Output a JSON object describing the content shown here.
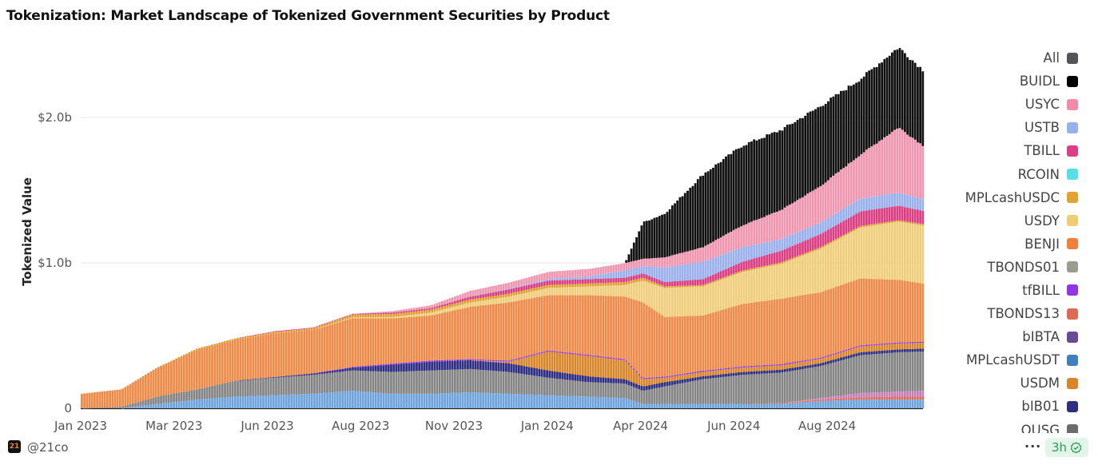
{
  "chart_data": {
    "type": "bar",
    "stacked": true,
    "title": "Tokenization: Market Landscape of Tokenized Government Securities by Product",
    "xlabel": "",
    "ylabel": "Tokenized Value",
    "ylim": [
      0,
      2.45
    ],
    "y_unit": "billion USD",
    "yticks": [
      {
        "value": 0,
        "label": "0"
      },
      {
        "value": 1.0,
        "label": "$1.0b"
      },
      {
        "value": 2.0,
        "label": "$2.0b"
      }
    ],
    "xlim": [
      "2023-01-01",
      "2024-10-21"
    ],
    "xticks": [
      {
        "date": "2023-01-01",
        "label": "Jan 2023"
      },
      {
        "date": "2023-03-15",
        "label": "Mar 2023"
      },
      {
        "date": "2023-05-27",
        "label": "Jun 2023"
      },
      {
        "date": "2023-08-08",
        "label": "Aug 2023"
      },
      {
        "date": "2023-10-20",
        "label": "Nov 2023"
      },
      {
        "date": "2024-01-01",
        "label": "Jan 2024"
      },
      {
        "date": "2024-03-14",
        "label": "Apr 2024"
      },
      {
        "date": "2024-05-26",
        "label": "Jun 2024"
      },
      {
        "date": "2024-08-07",
        "label": "Aug 2024"
      }
    ],
    "grid": "horizontal",
    "legend_position": "right",
    "x": [
      "2023-01-01",
      "2023-02-01",
      "2023-03-01",
      "2023-04-01",
      "2023-05-01",
      "2023-06-01",
      "2023-07-01",
      "2023-08-01",
      "2023-09-01",
      "2023-10-01",
      "2023-11-01",
      "2023-12-01",
      "2024-01-01",
      "2024-02-01",
      "2024-03-01",
      "2024-03-15",
      "2024-04-01",
      "2024-05-01",
      "2024-06-01",
      "2024-07-01",
      "2024-08-01",
      "2024-09-01",
      "2024-10-01",
      "2024-10-20"
    ],
    "series": [
      {
        "color": "#6fa3dc",
        "values": [
          0,
          0,
          0.03,
          0.06,
          0.08,
          0.09,
          0.1,
          0.12,
          0.1,
          0.1,
          0.11,
          0.1,
          0.09,
          0.08,
          0.07,
          0.03,
          0.03,
          0.03,
          0.03,
          0.03,
          0.05,
          0.06,
          0.06,
          0.06
        ]
      },
      {
        "name": "TBONDS13",
        "color": "#dc6a55",
        "values": [
          0,
          0,
          0,
          0,
          0,
          0,
          0,
          0,
          0,
          0,
          0,
          0,
          0,
          0,
          0,
          0,
          0,
          0,
          0,
          0.005,
          0.01,
          0.015,
          0.02,
          0.02
        ]
      },
      {
        "name": "bIBTA",
        "color": "#c77fb8",
        "values": [
          0,
          0,
          0,
          0,
          0,
          0,
          0,
          0,
          0,
          0,
          0,
          0,
          0,
          0,
          0,
          0,
          0,
          0,
          0,
          0,
          0.01,
          0.03,
          0.035,
          0.04
        ]
      },
      {
        "name": "OUSG",
        "color": "#858585",
        "values": [
          0,
          0.01,
          0.05,
          0.07,
          0.11,
          0.12,
          0.13,
          0.14,
          0.15,
          0.16,
          0.16,
          0.15,
          0.12,
          0.1,
          0.1,
          0.09,
          0.12,
          0.17,
          0.2,
          0.21,
          0.22,
          0.26,
          0.27,
          0.27
        ]
      },
      {
        "name": "bIB01",
        "color": "#2e2e82",
        "values": [
          0,
          0,
          0,
          0,
          0,
          0.005,
          0.01,
          0.02,
          0.05,
          0.06,
          0.06,
          0.06,
          0.05,
          0.04,
          0.03,
          0.03,
          0.03,
          0.02,
          0.02,
          0.02,
          0.02,
          0.02,
          0.02,
          0.02
        ]
      },
      {
        "name": "USDM",
        "color": "#d8862a",
        "values": [
          0,
          0,
          0,
          0,
          0,
          0,
          0,
          0,
          0,
          0,
          0,
          0.01,
          0.13,
          0.14,
          0.13,
          0.05,
          0.03,
          0.03,
          0.03,
          0.03,
          0.03,
          0.04,
          0.04,
          0.04
        ]
      },
      {
        "name": "tfBILL",
        "color": "#9333ea",
        "values": [
          0,
          0,
          0,
          0,
          0,
          0,
          0,
          0.005,
          0.008,
          0.008,
          0.008,
          0.008,
          0.008,
          0.008,
          0.008,
          0.008,
          0.008,
          0.008,
          0.008,
          0.008,
          0.008,
          0.008,
          0.008,
          0.008
        ]
      },
      {
        "name": "BENJI",
        "color": "#f08a48",
        "values": [
          0.1,
          0.12,
          0.2,
          0.27,
          0.28,
          0.3,
          0.3,
          0.335,
          0.31,
          0.31,
          0.36,
          0.4,
          0.38,
          0.41,
          0.43,
          0.52,
          0.41,
          0.38,
          0.43,
          0.45,
          0.45,
          0.46,
          0.43,
          0.4
        ]
      },
      {
        "name": "USDY",
        "color": "#f0cd7a",
        "values": [
          0,
          0,
          0,
          0,
          0,
          0,
          0,
          0.005,
          0.01,
          0.02,
          0.03,
          0.04,
          0.05,
          0.06,
          0.08,
          0.15,
          0.2,
          0.2,
          0.22,
          0.24,
          0.3,
          0.35,
          0.4,
          0.4
        ]
      },
      {
        "name": "MPLcashUSDC",
        "color": "#e0a030",
        "values": [
          0,
          0,
          0,
          0.01,
          0.01,
          0.01,
          0.01,
          0.02,
          0.02,
          0.02,
          0.02,
          0.02,
          0.02,
          0.02,
          0.02,
          0.02,
          0.01,
          0.01,
          0.01,
          0.01,
          0.01,
          0.01,
          0.01,
          0.01
        ]
      },
      {
        "name": "TBILL",
        "color": "#dd3d82",
        "values": [
          0,
          0,
          0,
          0,
          0,
          0.005,
          0.005,
          0.005,
          0.01,
          0.01,
          0.02,
          0.03,
          0.03,
          0.03,
          0.03,
          0.03,
          0.03,
          0.04,
          0.06,
          0.08,
          0.09,
          0.1,
          0.1,
          0.09
        ]
      },
      {
        "name": "USTB",
        "color": "#9ab0ec",
        "values": [
          0,
          0,
          0,
          0,
          0,
          0,
          0,
          0,
          0,
          0,
          0,
          0.005,
          0.01,
          0.02,
          0.05,
          0.05,
          0.1,
          0.12,
          0.1,
          0.08,
          0.08,
          0.09,
          0.09,
          0.08
        ]
      },
      {
        "name": "USYC",
        "color": "#f296b0",
        "values": [
          0,
          0,
          0,
          0,
          0,
          0,
          0,
          0,
          0.01,
          0.02,
          0.04,
          0.04,
          0.05,
          0.05,
          0.05,
          0.05,
          0.07,
          0.1,
          0.15,
          0.2,
          0.25,
          0.3,
          0.45,
          0.37
        ]
      },
      {
        "name": "BUIDL",
        "color": "#111111",
        "values": [
          0,
          0,
          0,
          0,
          0,
          0,
          0,
          0,
          0,
          0,
          0,
          0,
          0,
          0,
          0,
          0.25,
          0.3,
          0.5,
          0.55,
          0.55,
          0.55,
          0.52,
          0.55,
          0.52
        ]
      }
    ]
  },
  "legend": [
    {
      "label": "All",
      "color": "#555559"
    },
    {
      "label": "BUIDL",
      "color": "#000000"
    },
    {
      "label": "USYC",
      "color": "#f28aa8"
    },
    {
      "label": "USTB",
      "color": "#98b0ec"
    },
    {
      "label": "TBILL",
      "color": "#dd3d82"
    },
    {
      "label": "RCOIN",
      "color": "#58dfe3"
    },
    {
      "label": "MPLcashUSDC",
      "color": "#e3a331"
    },
    {
      "label": "USDY",
      "color": "#f0cd72"
    },
    {
      "label": "BENJI",
      "color": "#f0803c"
    },
    {
      "label": "TBONDS01",
      "color": "#9c9c8c"
    },
    {
      "label": "tfBILL",
      "color": "#9333ea"
    },
    {
      "label": "TBONDS13",
      "color": "#dc6a55"
    },
    {
      "label": "bIBTA",
      "color": "#6a4a95"
    },
    {
      "label": "MPLcashUSDT",
      "color": "#3f7fc0"
    },
    {
      "label": "USDM",
      "color": "#d8862a"
    },
    {
      "label": "bIB01",
      "color": "#2e2e82"
    },
    {
      "label": "OUSG",
      "color": "#6b6b6b"
    }
  ],
  "footer": {
    "logo_text": "21",
    "handle": "@21co",
    "more_label": "···",
    "freshness": "3h",
    "freshness_icon": "check-badge-icon"
  }
}
